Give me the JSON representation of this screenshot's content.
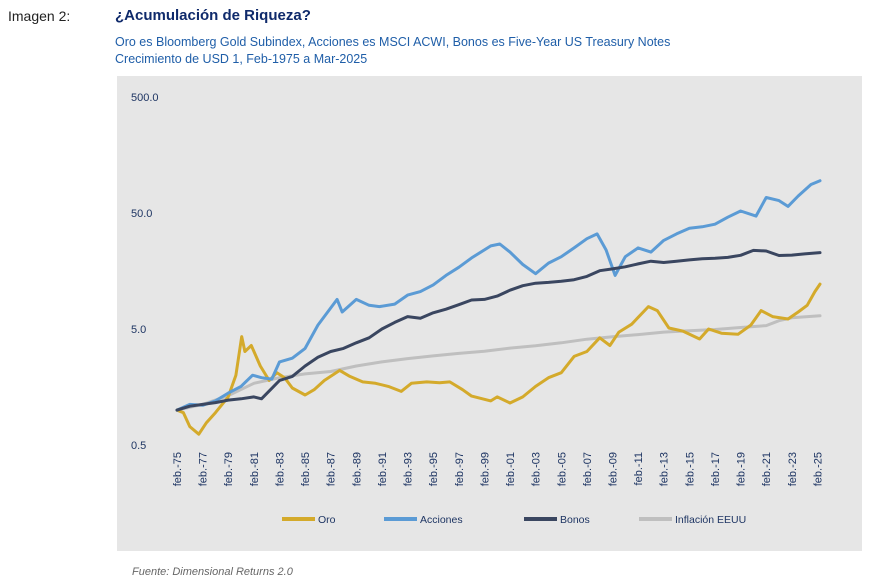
{
  "figure": {
    "label": "Imagen 2:",
    "title": "¿Acumulación de Riqueza?",
    "subtitle_line1": "Oro es Bloomberg Gold Subindex, Acciones es MSCI ACWI, Bonos es Five-Year US Treasury Notes",
    "subtitle_line2": "Crecimiento de USD 1, Feb-1975 a Mar-2025",
    "source": "Fuente: Dimensional Returns 2.0"
  },
  "chart_data": {
    "type": "line",
    "title": "¿Acumulación de Riqueza?",
    "y_scale": "log",
    "ylim": [
      0.5,
      500
    ],
    "y_ticks": [
      0.5,
      5.0,
      50.0,
      500.0
    ],
    "y_tick_labels": [
      "0.5",
      "5.0",
      "50.0",
      "500.0"
    ],
    "x_range": [
      1975,
      2025.2
    ],
    "x_ticks": [
      1975,
      1977,
      1979,
      1981,
      1983,
      1985,
      1987,
      1989,
      1991,
      1993,
      1995,
      1997,
      1999,
      2001,
      2003,
      2005,
      2007,
      2009,
      2011,
      2013,
      2015,
      2017,
      2019,
      2021,
      2023,
      2025
    ],
    "x_tick_labels": [
      "feb.-75",
      "feb.-77",
      "feb.-79",
      "feb.-81",
      "feb.-83",
      "feb.-85",
      "feb.-87",
      "feb.-89",
      "feb.-91",
      "feb.-93",
      "feb.-95",
      "feb.-97",
      "feb.-99",
      "feb.-01",
      "feb.-03",
      "feb.-05",
      "feb.-07",
      "feb.-09",
      "feb.-11",
      "feb.-13",
      "feb.-15",
      "feb.-17",
      "feb.-19",
      "feb.-21",
      "feb.-23",
      "feb.-25"
    ],
    "grid": false,
    "legend_position": "bottom",
    "series": [
      {
        "name": "Oro",
        "color": "#d4aa2b",
        "points": [
          [
            1975,
            1.0
          ],
          [
            1975.5,
            0.95
          ],
          [
            1976,
            0.72
          ],
          [
            1976.7,
            0.62
          ],
          [
            1977.3,
            0.78
          ],
          [
            1978,
            0.95
          ],
          [
            1979,
            1.3
          ],
          [
            1979.6,
            2.0
          ],
          [
            1980.05,
            4.3
          ],
          [
            1980.3,
            3.2
          ],
          [
            1980.8,
            3.6
          ],
          [
            1981.5,
            2.4
          ],
          [
            1982.2,
            1.8
          ],
          [
            1982.8,
            2.1
          ],
          [
            1983.4,
            1.9
          ],
          [
            1984,
            1.55
          ],
          [
            1985,
            1.35
          ],
          [
            1985.7,
            1.5
          ],
          [
            1986.5,
            1.8
          ],
          [
            1987.7,
            2.2
          ],
          [
            1988.5,
            1.95
          ],
          [
            1989.5,
            1.75
          ],
          [
            1990.5,
            1.7
          ],
          [
            1991.5,
            1.6
          ],
          [
            1992.5,
            1.45
          ],
          [
            1993.3,
            1.7
          ],
          [
            1994.5,
            1.75
          ],
          [
            1995.5,
            1.72
          ],
          [
            1996.3,
            1.75
          ],
          [
            1997.3,
            1.5
          ],
          [
            1998,
            1.32
          ],
          [
            1999.5,
            1.2
          ],
          [
            2000,
            1.3
          ],
          [
            2001,
            1.15
          ],
          [
            2002,
            1.3
          ],
          [
            2003,
            1.6
          ],
          [
            2004,
            1.9
          ],
          [
            2005,
            2.1
          ],
          [
            2006,
            2.9
          ],
          [
            2007,
            3.2
          ],
          [
            2008,
            4.2
          ],
          [
            2008.8,
            3.6
          ],
          [
            2009.5,
            4.7
          ],
          [
            2010.5,
            5.5
          ],
          [
            2011.8,
            7.8
          ],
          [
            2012.5,
            7.2
          ],
          [
            2013.4,
            5.1
          ],
          [
            2014.5,
            4.8
          ],
          [
            2015.8,
            4.1
          ],
          [
            2016.5,
            5.0
          ],
          [
            2017.5,
            4.6
          ],
          [
            2018.8,
            4.5
          ],
          [
            2019.8,
            5.4
          ],
          [
            2020.6,
            7.2
          ],
          [
            2021.5,
            6.4
          ],
          [
            2022.7,
            6.1
          ],
          [
            2023.5,
            7.0
          ],
          [
            2024.2,
            8.0
          ],
          [
            2024.8,
            10.5
          ],
          [
            2025.2,
            12.2
          ]
        ]
      },
      {
        "name": "Acciones",
        "color": "#5b9bd5",
        "points": [
          [
            1975,
            1.0
          ],
          [
            1976,
            1.12
          ],
          [
            1977,
            1.1
          ],
          [
            1978,
            1.2
          ],
          [
            1979,
            1.4
          ],
          [
            1980,
            1.6
          ],
          [
            1980.9,
            2.0
          ],
          [
            1981.6,
            1.9
          ],
          [
            1982.4,
            1.85
          ],
          [
            1983,
            2.6
          ],
          [
            1984,
            2.8
          ],
          [
            1985,
            3.4
          ],
          [
            1986,
            5.4
          ],
          [
            1987.5,
            9.0
          ],
          [
            1987.9,
            7.0
          ],
          [
            1989,
            9.0
          ],
          [
            1990,
            8.0
          ],
          [
            1990.8,
            7.8
          ],
          [
            1992,
            8.2
          ],
          [
            1993,
            9.8
          ],
          [
            1994,
            10.5
          ],
          [
            1995,
            12.0
          ],
          [
            1996,
            14.5
          ],
          [
            1997,
            17.0
          ],
          [
            1998,
            20.5
          ],
          [
            1999.5,
            26.0
          ],
          [
            2000.2,
            27.0
          ],
          [
            2001,
            23.0
          ],
          [
            2002,
            18.0
          ],
          [
            2003,
            15.0
          ],
          [
            2004,
            18.5
          ],
          [
            2005,
            21.0
          ],
          [
            2006,
            25.0
          ],
          [
            2007,
            30.0
          ],
          [
            2007.8,
            33.0
          ],
          [
            2008.5,
            24.0
          ],
          [
            2009.2,
            14.5
          ],
          [
            2010,
            21.0
          ],
          [
            2011,
            25.0
          ],
          [
            2012,
            23.0
          ],
          [
            2013,
            29.0
          ],
          [
            2014,
            33.0
          ],
          [
            2015,
            37.0
          ],
          [
            2016,
            38.0
          ],
          [
            2017,
            40.0
          ],
          [
            2018,
            46.0
          ],
          [
            2019,
            52.0
          ],
          [
            2020.2,
            47.0
          ],
          [
            2021,
            68.0
          ],
          [
            2022,
            64.0
          ],
          [
            2022.7,
            57.0
          ],
          [
            2023.5,
            70.0
          ],
          [
            2024.5,
            88.0
          ],
          [
            2025.2,
            95.0
          ]
        ]
      },
      {
        "name": "Bonos",
        "color": "#3a4660",
        "points": [
          [
            1975,
            1.0
          ],
          [
            1976,
            1.08
          ],
          [
            1977,
            1.12
          ],
          [
            1978,
            1.16
          ],
          [
            1979,
            1.22
          ],
          [
            1980,
            1.25
          ],
          [
            1981,
            1.3
          ],
          [
            1981.6,
            1.25
          ],
          [
            1982.3,
            1.5
          ],
          [
            1983,
            1.8
          ],
          [
            1984,
            1.95
          ],
          [
            1985,
            2.4
          ],
          [
            1986,
            2.85
          ],
          [
            1987,
            3.2
          ],
          [
            1988,
            3.4
          ],
          [
            1989,
            3.8
          ],
          [
            1990,
            4.2
          ],
          [
            1991,
            5.0
          ],
          [
            1992,
            5.7
          ],
          [
            1993,
            6.4
          ],
          [
            1994,
            6.2
          ],
          [
            1995,
            6.9
          ],
          [
            1996,
            7.4
          ],
          [
            1997,
            8.1
          ],
          [
            1998,
            8.9
          ],
          [
            1999,
            9.0
          ],
          [
            2000,
            9.6
          ],
          [
            2001,
            10.8
          ],
          [
            2002,
            11.8
          ],
          [
            2003,
            12.4
          ],
          [
            2004,
            12.6
          ],
          [
            2005,
            12.9
          ],
          [
            2006,
            13.3
          ],
          [
            2007,
            14.2
          ],
          [
            2008,
            15.9
          ],
          [
            2009,
            16.5
          ],
          [
            2010,
            17.2
          ],
          [
            2011,
            18.2
          ],
          [
            2012,
            19.2
          ],
          [
            2013,
            18.7
          ],
          [
            2014,
            19.2
          ],
          [
            2015,
            19.7
          ],
          [
            2016,
            20.2
          ],
          [
            2017,
            20.4
          ],
          [
            2018,
            20.7
          ],
          [
            2019,
            21.6
          ],
          [
            2020,
            23.8
          ],
          [
            2021,
            23.5
          ],
          [
            2022,
            21.5
          ],
          [
            2023,
            21.7
          ],
          [
            2024,
            22.2
          ],
          [
            2025.2,
            22.8
          ]
        ]
      },
      {
        "name": "Inflación EEUU",
        "color": "#bfbfbf",
        "points": [
          [
            1975,
            1.0
          ],
          [
            1977,
            1.12
          ],
          [
            1979,
            1.33
          ],
          [
            1981,
            1.7
          ],
          [
            1983,
            1.9
          ],
          [
            1985,
            2.05
          ],
          [
            1987,
            2.15
          ],
          [
            1989,
            2.4
          ],
          [
            1991,
            2.6
          ],
          [
            1993,
            2.78
          ],
          [
            1995,
            2.93
          ],
          [
            1997,
            3.08
          ],
          [
            1999,
            3.22
          ],
          [
            2001,
            3.42
          ],
          [
            2003,
            3.58
          ],
          [
            2005,
            3.8
          ],
          [
            2007,
            4.08
          ],
          [
            2009,
            4.28
          ],
          [
            2011,
            4.47
          ],
          [
            2013,
            4.7
          ],
          [
            2015,
            4.82
          ],
          [
            2017,
            4.95
          ],
          [
            2019,
            5.15
          ],
          [
            2021,
            5.35
          ],
          [
            2022,
            5.9
          ],
          [
            2023,
            6.25
          ],
          [
            2025.2,
            6.5
          ]
        ]
      }
    ]
  }
}
